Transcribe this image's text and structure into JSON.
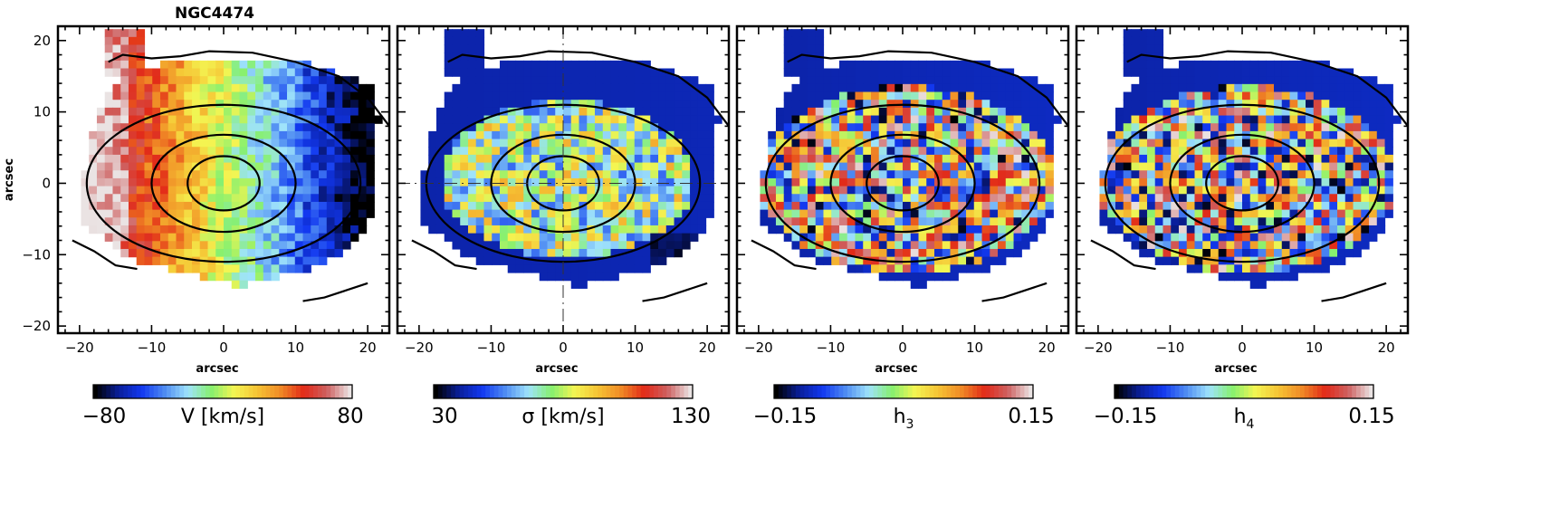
{
  "figure": {
    "object_name": "NGC4474",
    "colors": {
      "colormap": [
        "#000000",
        "#0a1f9a",
        "#1238f0",
        "#4f8cf2",
        "#9fe3fb",
        "#86f06f",
        "#f4f552",
        "#f5c334",
        "#f08a26",
        "#e22a18",
        "#ce6060",
        "#eae3e3"
      ],
      "contour": "#000000",
      "frame": "#000000"
    }
  },
  "chart_data": [
    {
      "type": "heatmap",
      "title": "NGC4474",
      "xlabel": "arcsec",
      "ylabel": "arcsec",
      "xlim": [
        -23,
        23
      ],
      "ylim": [
        -21,
        22
      ],
      "xticks": [
        "−20",
        "−10",
        "0",
        "10",
        "20"
      ],
      "yticks": [
        "20",
        "10",
        "0",
        "−10",
        "−20"
      ],
      "quantity": "velocity",
      "colorbar": {
        "min": -80,
        "max": 80,
        "min_label": "−80",
        "max_label": "80",
        "label": "V [km/s]"
      },
      "field": "rotation"
    },
    {
      "type": "heatmap",
      "xlabel": "arcsec",
      "ylabel": "",
      "xlim": [
        -23,
        23
      ],
      "ylim": [
        -21,
        22
      ],
      "xticks": [
        "−20",
        "−10",
        "0",
        "10",
        "20"
      ],
      "quantity": "velocity dispersion",
      "colorbar": {
        "min": 30,
        "max": 130,
        "min_label": "30",
        "max_label": "130",
        "label": "σ [km/s]"
      },
      "field": "dispersion",
      "crosshair": true
    },
    {
      "type": "heatmap",
      "xlabel": "arcsec",
      "ylabel": "",
      "xlim": [
        -23,
        23
      ],
      "ylim": [
        -21,
        22
      ],
      "xticks": [
        "−20",
        "−10",
        "0",
        "10",
        "20"
      ],
      "quantity": "h3",
      "colorbar": {
        "min": -0.15,
        "max": 0.15,
        "min_label": "−0.15",
        "max_label": "0.15",
        "label": "h",
        "label_sub": "3"
      },
      "field": "noise"
    },
    {
      "type": "heatmap",
      "xlabel": "arcsec",
      "ylabel": "",
      "xlim": [
        -23,
        23
      ],
      "ylim": [
        -21,
        22
      ],
      "xticks": [
        "−20",
        "−10",
        "0",
        "10",
        "20"
      ],
      "quantity": "h4",
      "colorbar": {
        "min": -0.15,
        "max": 0.15,
        "min_label": "−0.15",
        "max_label": "0.15",
        "label": "h",
        "label_sub": "4"
      },
      "field": "noise"
    }
  ]
}
